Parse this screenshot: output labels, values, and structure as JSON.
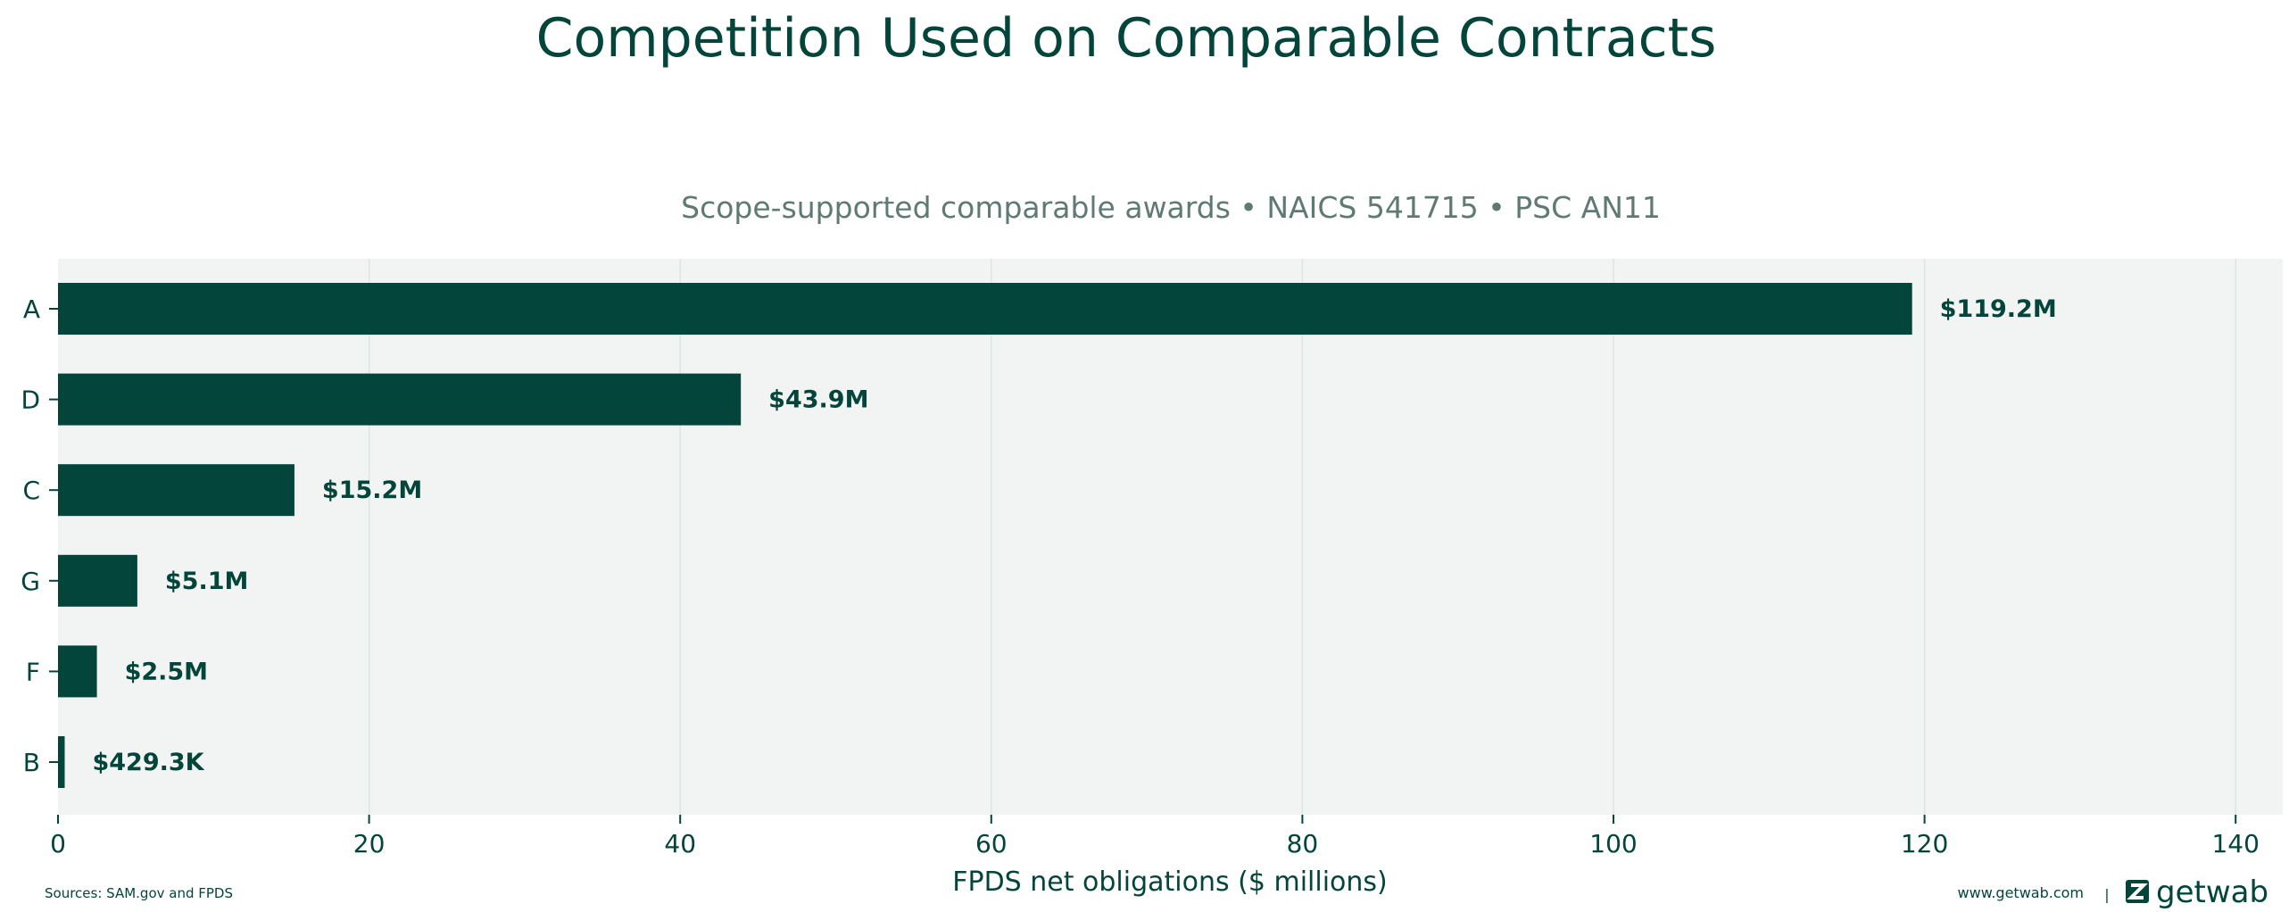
{
  "chart_data": {
    "type": "bar",
    "orientation": "horizontal",
    "title": "Competition Used on Comparable Contracts",
    "subtitle": "Scope-supported comparable awards • NAICS 541715 • PSC AN11",
    "xlabel": "FPDS net obligations ($ millions)",
    "categories": [
      "A",
      "D",
      "C",
      "G",
      "F",
      "B"
    ],
    "values": [
      119.2,
      43.9,
      15.2,
      5.1,
      2.5,
      0.4293
    ],
    "data_labels": [
      "$119.2M",
      "$43.9M",
      "$15.2M",
      "$5.1M",
      "$2.5M",
      "$429.3K"
    ],
    "xlim": [
      0,
      143
    ],
    "xticks": [
      0,
      20,
      40,
      60,
      80,
      100,
      120,
      140
    ],
    "grid": "vertical",
    "bar_color": "#03453a",
    "plot_background": "#f2f4f3",
    "grid_color": "#dbe5e2"
  },
  "footer": {
    "sources": "Sources: SAM.gov and FPDS",
    "website": "www.getwab.com",
    "separator": "|",
    "brand": "getwab",
    "logo_icon": "getwab-logo-icon"
  }
}
